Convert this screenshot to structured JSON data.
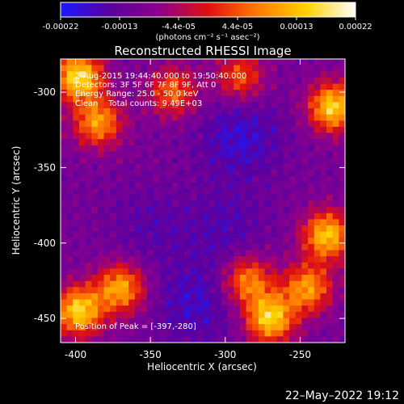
{
  "chart_data": {
    "type": "heatmap",
    "title": "Reconstructed RHESSI Image",
    "xlabel": "Heliocentric X (arcsec)",
    "ylabel": "Heliocentric Y (arcsec)",
    "xlim": [
      -410,
      -220
    ],
    "ylim": [
      -466,
      -278
    ],
    "xticks": [
      -400,
      -350,
      -300,
      -250
    ],
    "yticks": [
      -300,
      -350,
      -400,
      -450
    ],
    "colorbar": {
      "range": [
        -0.00022,
        0.00022
      ],
      "ticks": [
        "-0.00022",
        "-0.00013",
        "-4.4e-05",
        "4.4e-05",
        "0.00013",
        "0.00022"
      ],
      "units": "(photons cm⁻² s⁻¹ asec⁻²)",
      "colors": [
        "#1a1aff",
        "#5a00a0",
        "#8c008c",
        "#e01010",
        "#ff7a00",
        "#ffd200",
        "#ffffff"
      ]
    },
    "annotations": [
      "2-Aug-2015 19:44:40.000 to 19:50:40.000",
      "Detectors: 3F 5F 6F 7F 8F 9F, Att 0",
      "Energy Range: 25.0 - 50.0 keV",
      "Clean    Total counts: 9.49E+03"
    ],
    "peak_label": "Position of Peak = [-397,-280]",
    "peak_position": [
      -397,
      -280
    ],
    "hot_regions": [
      {
        "x": -398,
        "y": -290,
        "level": 1.0
      },
      {
        "x": -385,
        "y": -320,
        "level": 0.75
      },
      {
        "x": -398,
        "y": -445,
        "level": 0.95
      },
      {
        "x": -370,
        "y": -430,
        "level": 0.8
      },
      {
        "x": -335,
        "y": -300,
        "level": 0.6
      },
      {
        "x": -290,
        "y": -290,
        "level": 0.55
      },
      {
        "x": -228,
        "y": -310,
        "level": 0.95
      },
      {
        "x": -232,
        "y": -395,
        "level": 0.9
      },
      {
        "x": -270,
        "y": -450,
        "level": 0.95
      },
      {
        "x": -285,
        "y": -425,
        "level": 0.7
      },
      {
        "x": -245,
        "y": -430,
        "level": 0.75
      }
    ],
    "cold_regions": [
      {
        "x": -290,
        "y": -330,
        "level": 0.8
      },
      {
        "x": -320,
        "y": -440,
        "level": 0.7
      },
      {
        "x": -350,
        "y": -390,
        "level": 0.4
      },
      {
        "x": -300,
        "y": -390,
        "level": 0.5
      }
    ]
  },
  "footer": {
    "timestamp": "22–May–2022 19:12"
  }
}
